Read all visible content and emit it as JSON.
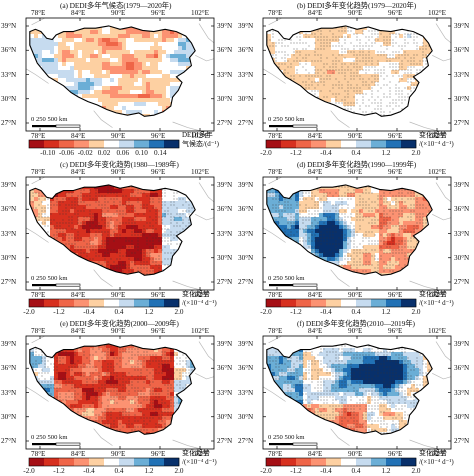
{
  "panels": [
    {
      "id": "a",
      "title": "(a) DEDI多年气候态(1979—2020年)",
      "style": "climatology",
      "stippled": false,
      "colorbar": {
        "ticks": [
          "-0.10",
          "-0.06",
          "-0.02",
          "0.02",
          "0.06",
          "0.10",
          "0.14"
        ],
        "colors": [
          "#a50f15",
          "#d7301f",
          "#ef6548",
          "#fc9272",
          "#fdd0a2",
          "#ffffff",
          "#c6dbef",
          "#6baed6",
          "#2171b5",
          "#08306b"
        ],
        "label_lines": [
          "DEDI多年",
          "气候态/(d⁻¹)"
        ]
      }
    },
    {
      "id": "b",
      "title": "(b) DEDI多年变化趋势(1979—2020年)",
      "style": "trend_weak",
      "stippled": true,
      "colorbar": {
        "ticks": [
          "-2.0",
          "-1.2",
          "-0.4",
          "0.4",
          "1.2",
          "2.0"
        ],
        "colors": [
          "#a50f15",
          "#d7301f",
          "#ef6548",
          "#fc9272",
          "#fdd0a2",
          "#ffffff",
          "#c6dbef",
          "#6baed6",
          "#2171b5",
          "#08306b"
        ],
        "label_lines": [
          "变化趋势",
          "/(×10⁻⁴ d⁻¹)"
        ]
      }
    },
    {
      "id": "c",
      "title": "(c) DEDI多年变化趋势(1980—1989年)",
      "style": "trend_red",
      "stippled": true,
      "colorbar": {
        "ticks": [
          "-2.0",
          "-1.2",
          "-0.4",
          "0.4",
          "1.2",
          "2.0"
        ],
        "colors": [
          "#a50f15",
          "#d7301f",
          "#ef6548",
          "#fc9272",
          "#fdd0a2",
          "#ffffff",
          "#c6dbef",
          "#6baed6",
          "#2171b5",
          "#08306b"
        ],
        "label_lines": [
          "变化趋势",
          "/(×10⁻⁴ d⁻¹)"
        ]
      }
    },
    {
      "id": "d",
      "title": "(d) DEDI多年变化趋势(1990—1999年)",
      "style": "trend_mixed_blue",
      "stippled": true,
      "colorbar": {
        "ticks": [
          "-2.0",
          "-1.2",
          "-0.4",
          "0.4",
          "1.2",
          "2.0"
        ],
        "colors": [
          "#a50f15",
          "#d7301f",
          "#ef6548",
          "#fc9272",
          "#fdd0a2",
          "#ffffff",
          "#c6dbef",
          "#6baed6",
          "#2171b5",
          "#08306b"
        ],
        "label_lines": [
          "变化趋势",
          "/(×10⁻⁴ d⁻¹)"
        ]
      }
    },
    {
      "id": "e",
      "title": "(e) DEDI多年变化趋势(2000—2009年)",
      "style": "trend_red_light",
      "stippled": true,
      "colorbar": {
        "ticks": [
          "-2.0",
          "-1.2",
          "-0.4",
          "0.4",
          "1.2",
          "2.0"
        ],
        "colors": [
          "#a50f15",
          "#d7301f",
          "#ef6548",
          "#fc9272",
          "#fdd0a2",
          "#ffffff",
          "#c6dbef",
          "#6baed6",
          "#2171b5",
          "#08306b"
        ],
        "label_lines": [
          "变化趋势",
          "/(×10⁻⁴ d⁻¹)"
        ]
      }
    },
    {
      "id": "f",
      "title": "(f) DEDI多年变化趋势(2010—2019年)",
      "style": "trend_blue_center",
      "stippled": true,
      "colorbar": {
        "ticks": [
          "-2.0",
          "-1.2",
          "-0.4",
          "0.4",
          "1.2",
          "2.0"
        ],
        "colors": [
          "#a50f15",
          "#d7301f",
          "#ef6548",
          "#fc9272",
          "#fdd0a2",
          "#ffffff",
          "#c6dbef",
          "#6baed6",
          "#2171b5",
          "#08306b"
        ],
        "label_lines": [
          "变化趋势",
          "/(×10⁻⁴ d⁻¹)"
        ]
      }
    }
  ],
  "map": {
    "lon_ticks": [
      "78°E",
      "84°E",
      "90°E",
      "96°E",
      "102°E"
    ],
    "lat_ticks": [
      "39°N",
      "36°N",
      "33°N",
      "30°N",
      "27°N"
    ],
    "scale_bar": "0  250  500 km"
  }
}
